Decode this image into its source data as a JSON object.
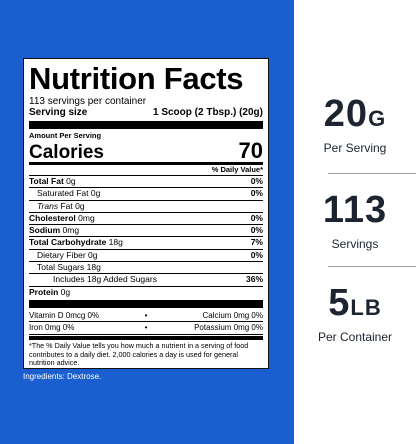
{
  "label": {
    "title": "Nutrition Facts",
    "servings_per_container": "113 servings per container",
    "serving_size_label": "Serving size",
    "serving_size_value": "1 Scoop (2 Tbsp.) (20g)",
    "amount_per_serving": "Amount Per Serving",
    "calories_label": "Calories",
    "calories_value": "70",
    "daily_value_header": "% Daily Value*",
    "rows": {
      "total_fat": {
        "name": "Total Fat",
        "amount": "0g",
        "pct": "0%"
      },
      "saturated_fat": {
        "name": "Saturated Fat",
        "amount": "0g",
        "pct": "0%"
      },
      "trans_fat": {
        "name": "Trans",
        "suffix": "Fat",
        "amount": "0g"
      },
      "cholesterol": {
        "name": "Cholesterol",
        "amount": "0mg",
        "pct": "0%"
      },
      "sodium": {
        "name": "Sodium",
        "amount": "0mg",
        "pct": "0%"
      },
      "total_carb": {
        "name": "Total Carbohydrate",
        "amount": "18g",
        "pct": "7%"
      },
      "fiber": {
        "name": "Dietary Fiber",
        "amount": "0g",
        "pct": "0%"
      },
      "total_sugars": {
        "name": "Total Sugars",
        "amount": "18g"
      },
      "added_sugars": {
        "name": "Includes 18g Added Sugars",
        "pct": "36%"
      },
      "protein": {
        "name": "Protein",
        "amount": "0g"
      }
    },
    "vitamins": [
      {
        "left": "Vitamin D  0mcg  0%",
        "dot": "•",
        "right": "Calcium  0mg  0%"
      },
      {
        "left": "Iron  0mg  0%",
        "dot": "•",
        "right": "Potassium  0mg  0%"
      }
    ],
    "footnote": "*The % Daily Value tells you how much a nutrient in a serving of food contributes to a daily diet. 2,000 calories a day is used for general nutrition advice."
  },
  "ingredients": "Ingredients: Dextrose.",
  "stats": [
    {
      "value": "20",
      "unit": "G",
      "caption": "Per Serving"
    },
    {
      "value": "113",
      "unit": "",
      "caption": "Servings"
    },
    {
      "value": "5",
      "unit": "LB",
      "caption": "Per Container"
    }
  ],
  "colors": {
    "panel_blue": "#1a5ecf",
    "stat_text": "#1c2430"
  }
}
